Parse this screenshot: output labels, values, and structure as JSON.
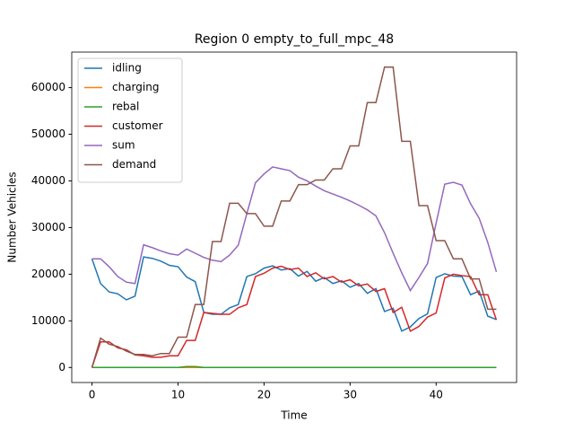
{
  "chart_data": {
    "type": "line",
    "title": "Region 0 empty_to_full_mpc_48",
    "xlabel": "Time",
    "ylabel": "Number Vehicles",
    "x": [
      0,
      1,
      2,
      3,
      4,
      5,
      6,
      7,
      8,
      9,
      10,
      11,
      12,
      13,
      14,
      15,
      16,
      17,
      18,
      19,
      20,
      21,
      22,
      23,
      24,
      25,
      26,
      27,
      28,
      29,
      30,
      31,
      32,
      33,
      34,
      35,
      36,
      37,
      38,
      39,
      40,
      41,
      42,
      43,
      44,
      45,
      46,
      47
    ],
    "series": [
      {
        "name": "idling",
        "color": "#1f77b4",
        "values": [
          23300,
          18000,
          16200,
          15800,
          14500,
          15300,
          23700,
          23400,
          22800,
          21900,
          21600,
          19400,
          18400,
          11800,
          11400,
          11400,
          12800,
          13500,
          19500,
          20100,
          21300,
          21800,
          20900,
          21200,
          19600,
          20600,
          18500,
          19300,
          18000,
          18600,
          17200,
          18000,
          15900,
          16900,
          12000,
          12700,
          7800,
          8700,
          10500,
          11500,
          19300,
          20100,
          19600,
          19500,
          15600,
          16400,
          11000,
          10300
        ]
      },
      {
        "name": "charging",
        "color": "#ff7f0e",
        "values": [
          0,
          0,
          0,
          0,
          0,
          0,
          0,
          0,
          0,
          0,
          0,
          0,
          0,
          0,
          0,
          0,
          0,
          0,
          0,
          0,
          0,
          0,
          0,
          0,
          0,
          0,
          0,
          0,
          0,
          0,
          0,
          0,
          0,
          0,
          0,
          0,
          0,
          0,
          0,
          0,
          0,
          0,
          0,
          0,
          0,
          0,
          0,
          0
        ]
      },
      {
        "name": "rebal",
        "color": "#2ca02c",
        "values": [
          0,
          0,
          0,
          0,
          0,
          0,
          0,
          0,
          0,
          0,
          0,
          200,
          200,
          0,
          0,
          0,
          0,
          0,
          0,
          0,
          0,
          0,
          0,
          0,
          0,
          0,
          0,
          0,
          0,
          0,
          0,
          0,
          0,
          0,
          0,
          0,
          0,
          0,
          0,
          0,
          0,
          0,
          0,
          0,
          0,
          0,
          0,
          0
        ]
      },
      {
        "name": "customer",
        "color": "#d62728",
        "values": [
          0,
          5500,
          5500,
          4200,
          3800,
          2700,
          2500,
          2200,
          2200,
          2500,
          2500,
          5800,
          5800,
          11800,
          11600,
          11400,
          11400,
          12800,
          13500,
          19500,
          20200,
          21300,
          21700,
          21000,
          21300,
          19500,
          20300,
          19000,
          19500,
          18300,
          18800,
          17500,
          17900,
          16300,
          16900,
          11800,
          12900,
          7800,
          8800,
          10800,
          11700,
          19200,
          20000,
          19700,
          19500,
          15600,
          15600,
          10200
        ]
      },
      {
        "name": "sum",
        "color": "#9467bd",
        "values": [
          23300,
          23300,
          21600,
          19500,
          18300,
          18000,
          26300,
          25700,
          25000,
          24400,
          24100,
          25400,
          24500,
          23600,
          23000,
          22700,
          24100,
          26200,
          33000,
          39600,
          41500,
          43000,
          42600,
          42200,
          40800,
          40000,
          38900,
          37900,
          37200,
          36500,
          35700,
          34800,
          33800,
          32500,
          28900,
          24500,
          20300,
          16500,
          19300,
          22300,
          31000,
          39300,
          39700,
          39100,
          35100,
          32000,
          26800,
          20500
        ]
      },
      {
        "name": "demand",
        "color": "#8c564b",
        "values": [
          0,
          6300,
          5000,
          4500,
          3500,
          2800,
          2800,
          2500,
          3000,
          3000,
          6500,
          6500,
          13500,
          13500,
          27000,
          27000,
          35200,
          35200,
          33000,
          33000,
          30300,
          30300,
          35700,
          35700,
          39200,
          39200,
          40200,
          40200,
          42600,
          42600,
          47500,
          47500,
          56800,
          56800,
          64400,
          64400,
          48500,
          48500,
          34700,
          34700,
          27200,
          27200,
          23300,
          23300,
          19000,
          19000,
          12500,
          12500
        ]
      }
    ],
    "xlim": [
      -2.35,
      49.35
    ],
    "xticks": [
      0,
      10,
      20,
      30,
      40
    ],
    "ylim": [
      -3220,
      67620
    ],
    "yticks": [
      0,
      10000,
      20000,
      30000,
      40000,
      50000,
      60000
    ],
    "legend": "upper left",
    "grid": false
  }
}
